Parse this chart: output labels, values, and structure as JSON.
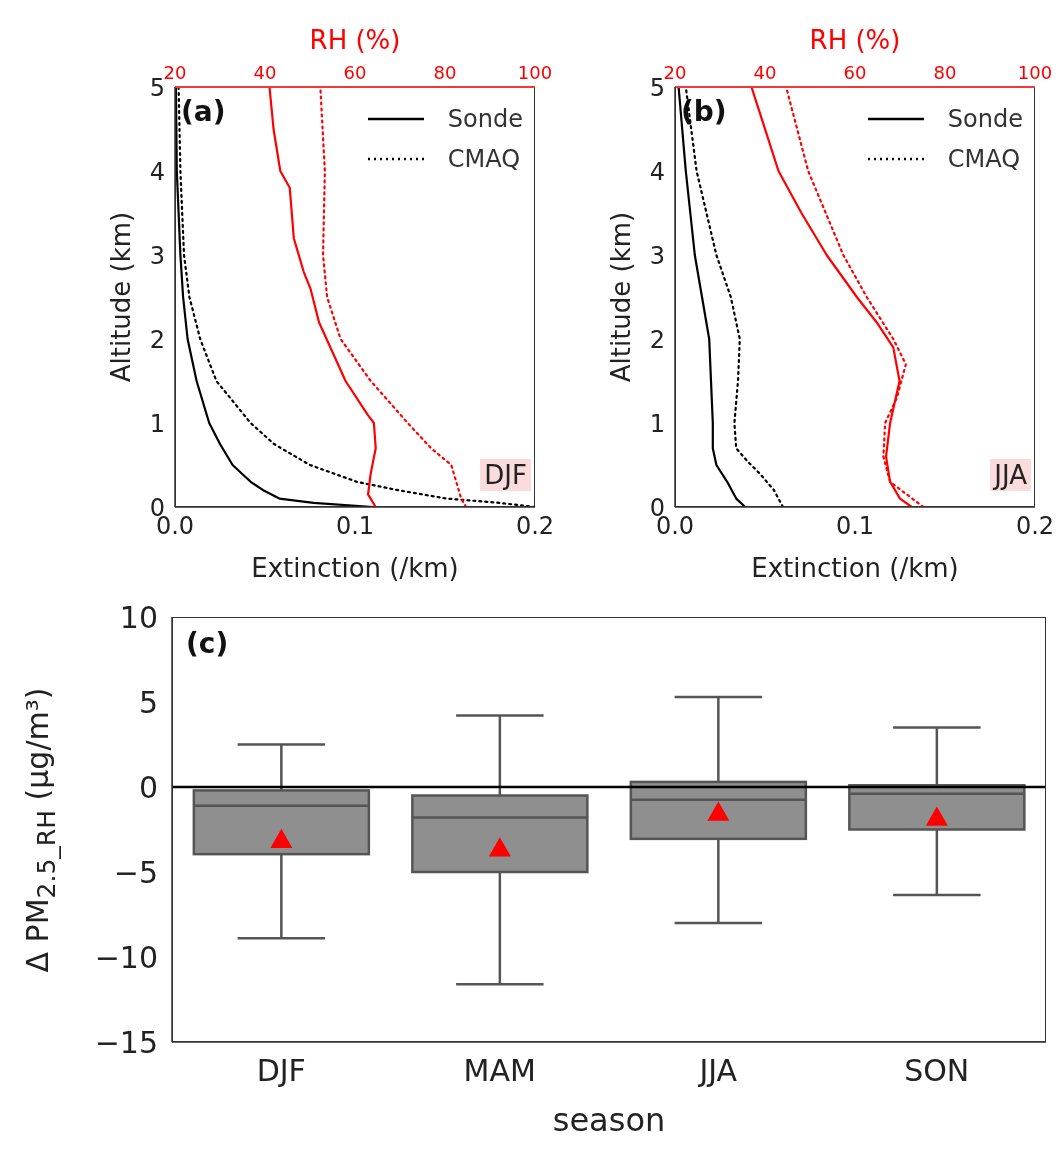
{
  "chart_data": [
    {
      "type": "line",
      "xlabel": "Extinction (/km)",
      "ylabel": "Altitude (km)",
      "x2label": "RH (%)",
      "xlim": [
        0,
        0.2
      ],
      "xticks": [
        {
          "value": 0,
          "label": "0.0"
        },
        {
          "value": 0.1,
          "label": "0.1"
        },
        {
          "value": 0.2,
          "label": "0.2"
        }
      ],
      "ylim": [
        0,
        5
      ],
      "yticks": [
        0,
        1,
        2,
        3,
        4,
        5
      ],
      "x2lim": [
        20,
        100
      ],
      "x2ticks": [
        20,
        40,
        60,
        80,
        100
      ],
      "legend": "top right",
      "marker": "none",
      "annotations": [
        "(a)",
        "DJF"
      ],
      "series": [
        {
          "name": "Sonde",
          "color": "#000000",
          "line_style": "solid",
          "x": [
            0.11,
            0.077,
            0.058,
            0.049,
            0.042,
            0.032,
            0.025,
            0.019,
            0.012,
            0.007,
            0.0045,
            0.003,
            0.001,
            0.0005
          ],
          "values": [
            0,
            0.05,
            0.1,
            0.2,
            0.3,
            0.5,
            0.75,
            1,
            1.5,
            2,
            2.5,
            3,
            4,
            5
          ]
        },
        {
          "name": "CMAQ",
          "color": "#000000",
          "line_style": "dotted",
          "x": [
            0.2,
            0.18,
            0.151,
            0.124,
            0.101,
            0.075,
            0.055,
            0.042,
            0.023,
            0.014,
            0.008,
            0.005,
            0.003,
            0.002
          ],
          "values": [
            0,
            0.05,
            0.1,
            0.2,
            0.3,
            0.5,
            0.75,
            1,
            1.5,
            2,
            2.5,
            3,
            4,
            5
          ]
        },
        {
          "color": "#ff0000",
          "line_style": "solid",
          "axis": "x2",
          "x": [
            64.6,
            62.9,
            63.5,
            64.6,
            64.2,
            62.8,
            57.9,
            52,
            50.1,
            48.6,
            46.4,
            45.5,
            43.4,
            41.9,
            41
          ],
          "values": [
            0,
            0.15,
            0.4,
            0.7,
            1,
            1.1,
            1.5,
            2.2,
            2.6,
            2.8,
            3.2,
            3.8,
            4,
            4.5,
            5
          ]
        },
        {
          "color": "#ff0000",
          "line_style": "dotted",
          "axis": "x2",
          "x": [
            84.7,
            83.6,
            82.5,
            81.4,
            76.9,
            71.7,
            63.5,
            56.8,
            53.8,
            52.9,
            53.3,
            52.3
          ],
          "values": [
            0,
            0.1,
            0.3,
            0.5,
            0.7,
            1,
            1.5,
            2,
            2.5,
            3,
            4,
            5
          ]
        }
      ]
    },
    {
      "type": "line",
      "xlabel": "Extinction (/km)",
      "ylabel": "Altitude (km)",
      "x2label": "RH (%)",
      "xlim": [
        0,
        0.2
      ],
      "xticks": [
        {
          "value": 0,
          "label": "0.0"
        },
        {
          "value": 0.1,
          "label": "0.1"
        },
        {
          "value": 0.2,
          "label": "0.2"
        }
      ],
      "ylim": [
        0,
        5
      ],
      "yticks": [
        0,
        1,
        2,
        3,
        4,
        5
      ],
      "x2lim": [
        20,
        100
      ],
      "x2ticks": [
        20,
        40,
        60,
        80,
        100
      ],
      "legend": "top right",
      "marker": "none",
      "annotations": [
        "(b)",
        "JJA"
      ],
      "series": [
        {
          "name": "Sonde",
          "color": "#000000",
          "line_style": "solid",
          "x": [
            0.039,
            0.034,
            0.029,
            0.023,
            0.021,
            0.021,
            0.02,
            0.019,
            0.015,
            0.011,
            0.006,
            0.002
          ],
          "values": [
            0,
            0.1,
            0.3,
            0.5,
            0.7,
            1,
            1.5,
            2,
            2.5,
            3,
            4,
            5
          ]
        },
        {
          "name": "CMAQ",
          "color": "#000000",
          "line_style": "dotted",
          "x": [
            0.06,
            0.055,
            0.047,
            0.04,
            0.034,
            0.033,
            0.035,
            0.036,
            0.031,
            0.023,
            0.012,
            0.006
          ],
          "values": [
            0,
            0.2,
            0.4,
            0.55,
            0.7,
            1,
            1.5,
            2,
            2.5,
            3,
            4,
            5
          ]
        },
        {
          "color": "#ff0000",
          "line_style": "solid",
          "axis": "x2",
          "x": [
            72.6,
            70,
            67.8,
            66.9,
            67.8,
            69.9,
            68.5,
            64.8,
            60.4,
            53.7,
            48.1,
            43,
            37
          ],
          "values": [
            0,
            0.1,
            0.3,
            0.6,
            1,
            1.5,
            1.9,
            2.2,
            2.5,
            3,
            3.5,
            4,
            5
          ]
        },
        {
          "color": "#ff0000",
          "line_style": "dotted",
          "axis": "x2",
          "x": [
            75.2,
            67.8,
            66.3,
            66.7,
            69.3,
            71.3,
            68.5,
            62.6,
            57.4,
            49.6,
            44.7
          ],
          "values": [
            0,
            0.3,
            0.6,
            1,
            1.3,
            1.7,
            2,
            2.5,
            3,
            4,
            5
          ]
        }
      ]
    },
    {
      "type": "box",
      "categories": [
        "DJF",
        "MAM",
        "JJA",
        "SON"
      ],
      "xlabel": "season",
      "ylabel": "Δ PM$_{2.5_RH}$ (μg/m³)",
      "ylim": [
        -15,
        10
      ],
      "yticks": [
        10,
        5,
        0,
        {
          "value": -5,
          "label": "−5"
        },
        {
          "value": -10,
          "label": "−10"
        },
        {
          "value": -15,
          "label": "−15"
        }
      ],
      "color": "#8f8f8f",
      "marker": "triangle",
      "annotations": [
        "(c)"
      ],
      "ref_lines": [
        {
          "axis": "y",
          "value": 0,
          "color": "#000000"
        }
      ],
      "boxes": [
        {
          "low": -8.9,
          "q1": -3.95,
          "median": -1.1,
          "q3": -0.2,
          "high": 2.5,
          "mean": -3.1
        },
        {
          "low": -11.6,
          "q1": -5,
          "median": -1.8,
          "q3": -0.5,
          "high": 4.2,
          "mean": -3.6
        },
        {
          "low": -8,
          "q1": -3.05,
          "median": -0.75,
          "q3": 0.3,
          "high": 5.3,
          "mean": -1.5
        },
        {
          "low": -6.35,
          "q1": -2.5,
          "median": -0.4,
          "q3": 0.1,
          "high": 3.5,
          "mean": -1.8
        }
      ]
    }
  ]
}
